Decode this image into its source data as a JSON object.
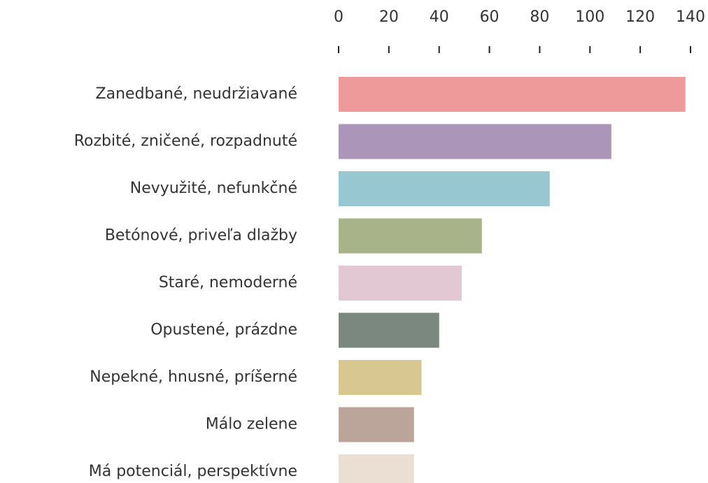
{
  "chart_data": {
    "type": "barh",
    "categories": [
      "Zanedbané, neudržiavané",
      "Rozbité, zničené, rozpadnuté",
      "Nevyužité, nefunkčné",
      "Betónové, priveľa dlažby",
      "Staré, nemoderné",
      "Opustené, prázdne",
      "Nepekné, hnusné, príšerné",
      "Málo zelene",
      "Má potenciál, perspektívne"
    ],
    "values": [
      138,
      108.5,
      84,
      57,
      49,
      40,
      33,
      30,
      30
    ],
    "colors": [
      "#ee9a9b",
      "#ab96ba",
      "#97c8d2",
      "#a9b38a",
      "#e1c8d3",
      "#7a887f",
      "#d9c792",
      "#bba499",
      "#ebdfd3"
    ],
    "xlim": [
      0,
      140
    ],
    "xticks": [
      0,
      20,
      40,
      60,
      80,
      100,
      120,
      140
    ],
    "grid": false
  }
}
